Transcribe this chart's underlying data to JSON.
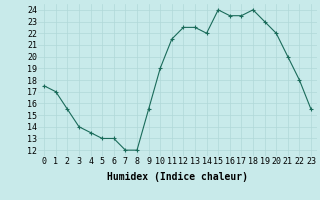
{
  "x": [
    0,
    1,
    2,
    3,
    4,
    5,
    6,
    7,
    8,
    9,
    10,
    11,
    12,
    13,
    14,
    15,
    16,
    17,
    18,
    19,
    20,
    21,
    22,
    23
  ],
  "y": [
    17.5,
    17.0,
    15.5,
    14.0,
    13.5,
    13.0,
    13.0,
    12.0,
    12.0,
    15.5,
    19.0,
    21.5,
    22.5,
    22.5,
    22.0,
    24.0,
    23.5,
    23.5,
    24.0,
    23.0,
    22.0,
    20.0,
    18.0,
    15.5
  ],
  "line_color": "#1a6b5a",
  "marker": "+",
  "background_color": "#c8eaea",
  "grid_color": "#b0d8d8",
  "xlabel": "Humidex (Indice chaleur)",
  "xlabel_fontsize": 7,
  "tick_fontsize": 6,
  "xlim": [
    -0.5,
    23.5
  ],
  "ylim": [
    11.5,
    24.5
  ],
  "yticks": [
    12,
    13,
    14,
    15,
    16,
    17,
    18,
    19,
    20,
    21,
    22,
    23,
    24
  ],
  "xticks": [
    0,
    1,
    2,
    3,
    4,
    5,
    6,
    7,
    8,
    9,
    10,
    11,
    12,
    13,
    14,
    15,
    16,
    17,
    18,
    19,
    20,
    21,
    22,
    23
  ]
}
